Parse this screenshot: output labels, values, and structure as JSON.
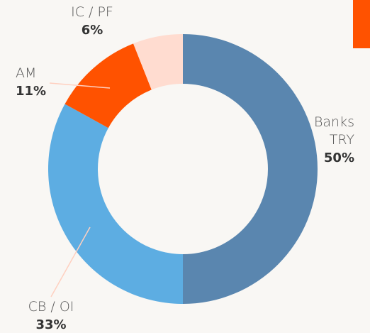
{
  "chart_data": {
    "type": "donut",
    "categories": [
      "Banks TRY",
      "CB / OI",
      "AM",
      "IC / PF"
    ],
    "values": [
      50,
      33,
      11,
      6
    ],
    "value_labels": [
      "50%",
      "33%",
      "11%",
      "6%"
    ],
    "colors": [
      "#5a86af",
      "#5dade2",
      "#ff5200",
      "#ffdcd0"
    ]
  }
}
